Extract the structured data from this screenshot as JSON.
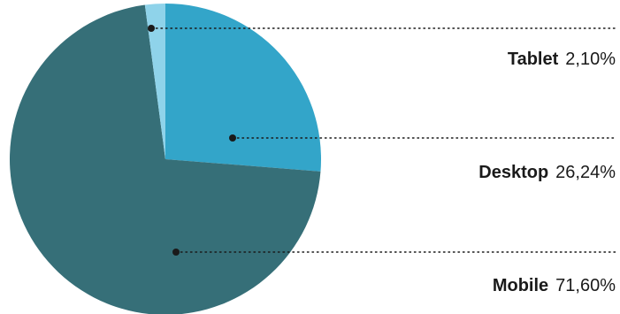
{
  "chart_data": {
    "type": "pie",
    "start_angle_deg": 0,
    "direction": "clockwise",
    "slices": [
      {
        "label": "Desktop",
        "value": 26.24,
        "value_label": "26,24%",
        "color": "#33a5c9"
      },
      {
        "label": "Mobile",
        "value": 71.6,
        "value_label": "71,60%",
        "color": "#366f78"
      },
      {
        "label": "Tablet",
        "value": 2.1,
        "value_label": "2,10%",
        "color": "#8fd3ea"
      }
    ],
    "legend_order": [
      "Tablet",
      "Desktop",
      "Mobile"
    ],
    "legend_placement": "right",
    "leader_line_style": "dotted",
    "leader_line_color": "#1a1a1a"
  }
}
